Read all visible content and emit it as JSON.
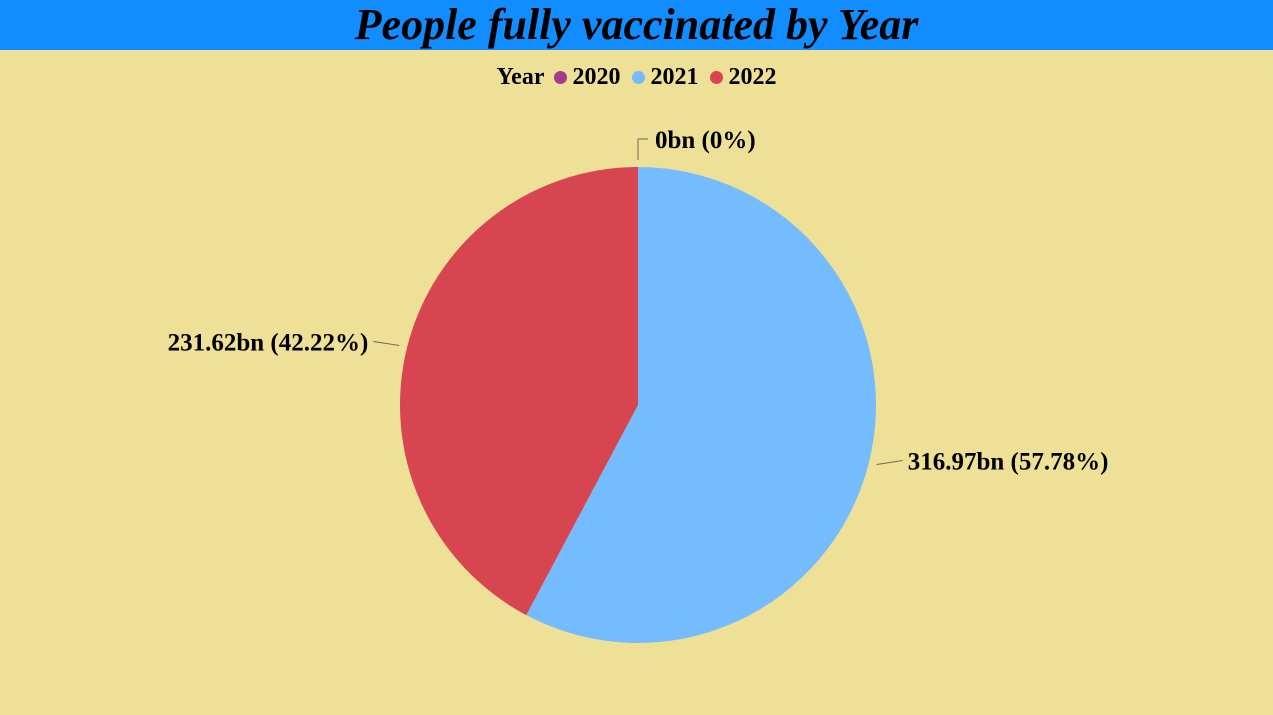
{
  "title": "People fully vaccinated by Year",
  "colors": {
    "title_bar": "#118DFF",
    "background": "#EFE097"
  },
  "legend": {
    "title": "Year",
    "items": [
      {
        "label": "2020",
        "color": "#A43B8E"
      },
      {
        "label": "2021",
        "color": "#75BCFF"
      },
      {
        "label": "2022",
        "color": "#D64550"
      }
    ]
  },
  "chart_data": {
    "type": "pie",
    "title": "People fully vaccinated by Year",
    "legend_title": "Year",
    "legend_position": "top-center",
    "categories": [
      "2020",
      "2021",
      "2022"
    ],
    "values": [
      0,
      316.97,
      231.62
    ],
    "unit": "bn",
    "percentages": [
      0,
      57.78,
      42.22
    ],
    "colors": [
      "#A43B8E",
      "#75BCFF",
      "#D64550"
    ],
    "data_labels": [
      "0bn (0%)",
      "316.97bn (57.78%)",
      "231.62bn (42.22%)"
    ]
  }
}
